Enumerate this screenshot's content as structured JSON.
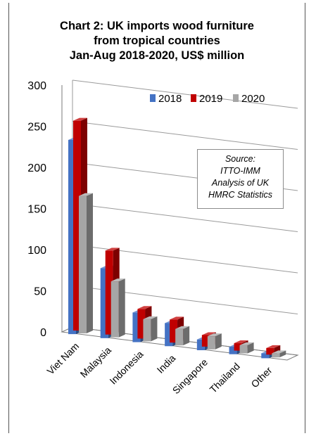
{
  "title_lines": [
    "Chart 2: UK imports wood furniture",
    "from tropical countries",
    "Jan-Aug 2018-2020, US$ million"
  ],
  "source_lines": [
    "Source:",
    "ITTO-IMM",
    "Analysis of UK",
    "HMRC Statistics"
  ],
  "colors": {
    "2018": "#4472c4",
    "2019": "#c00000",
    "2020": "#a6a6a6"
  },
  "chart_data": {
    "type": "bar",
    "title": "Chart 2: UK imports wood furniture from tropical countries Jan-Aug 2018-2020, US$ million",
    "categories": [
      "Viet Nam",
      "Malaysia",
      "Indonesia",
      "India",
      "Singapore",
      "Thailand",
      "Other"
    ],
    "series": [
      {
        "name": "2018",
        "values": [
          236,
          85,
          36,
          28,
          13,
          9,
          6
        ]
      },
      {
        "name": "2019",
        "values": [
          255,
          102,
          36,
          28,
          14,
          9,
          8
        ]
      },
      {
        "name": "2020",
        "values": [
          167,
          68,
          27,
          20,
          16,
          10,
          5
        ]
      }
    ],
    "ylim": [
      0,
      300
    ],
    "yticks": [
      0,
      50,
      100,
      150,
      200,
      250,
      300
    ],
    "legend_position": "top-right",
    "grid": true,
    "three_d": true
  }
}
